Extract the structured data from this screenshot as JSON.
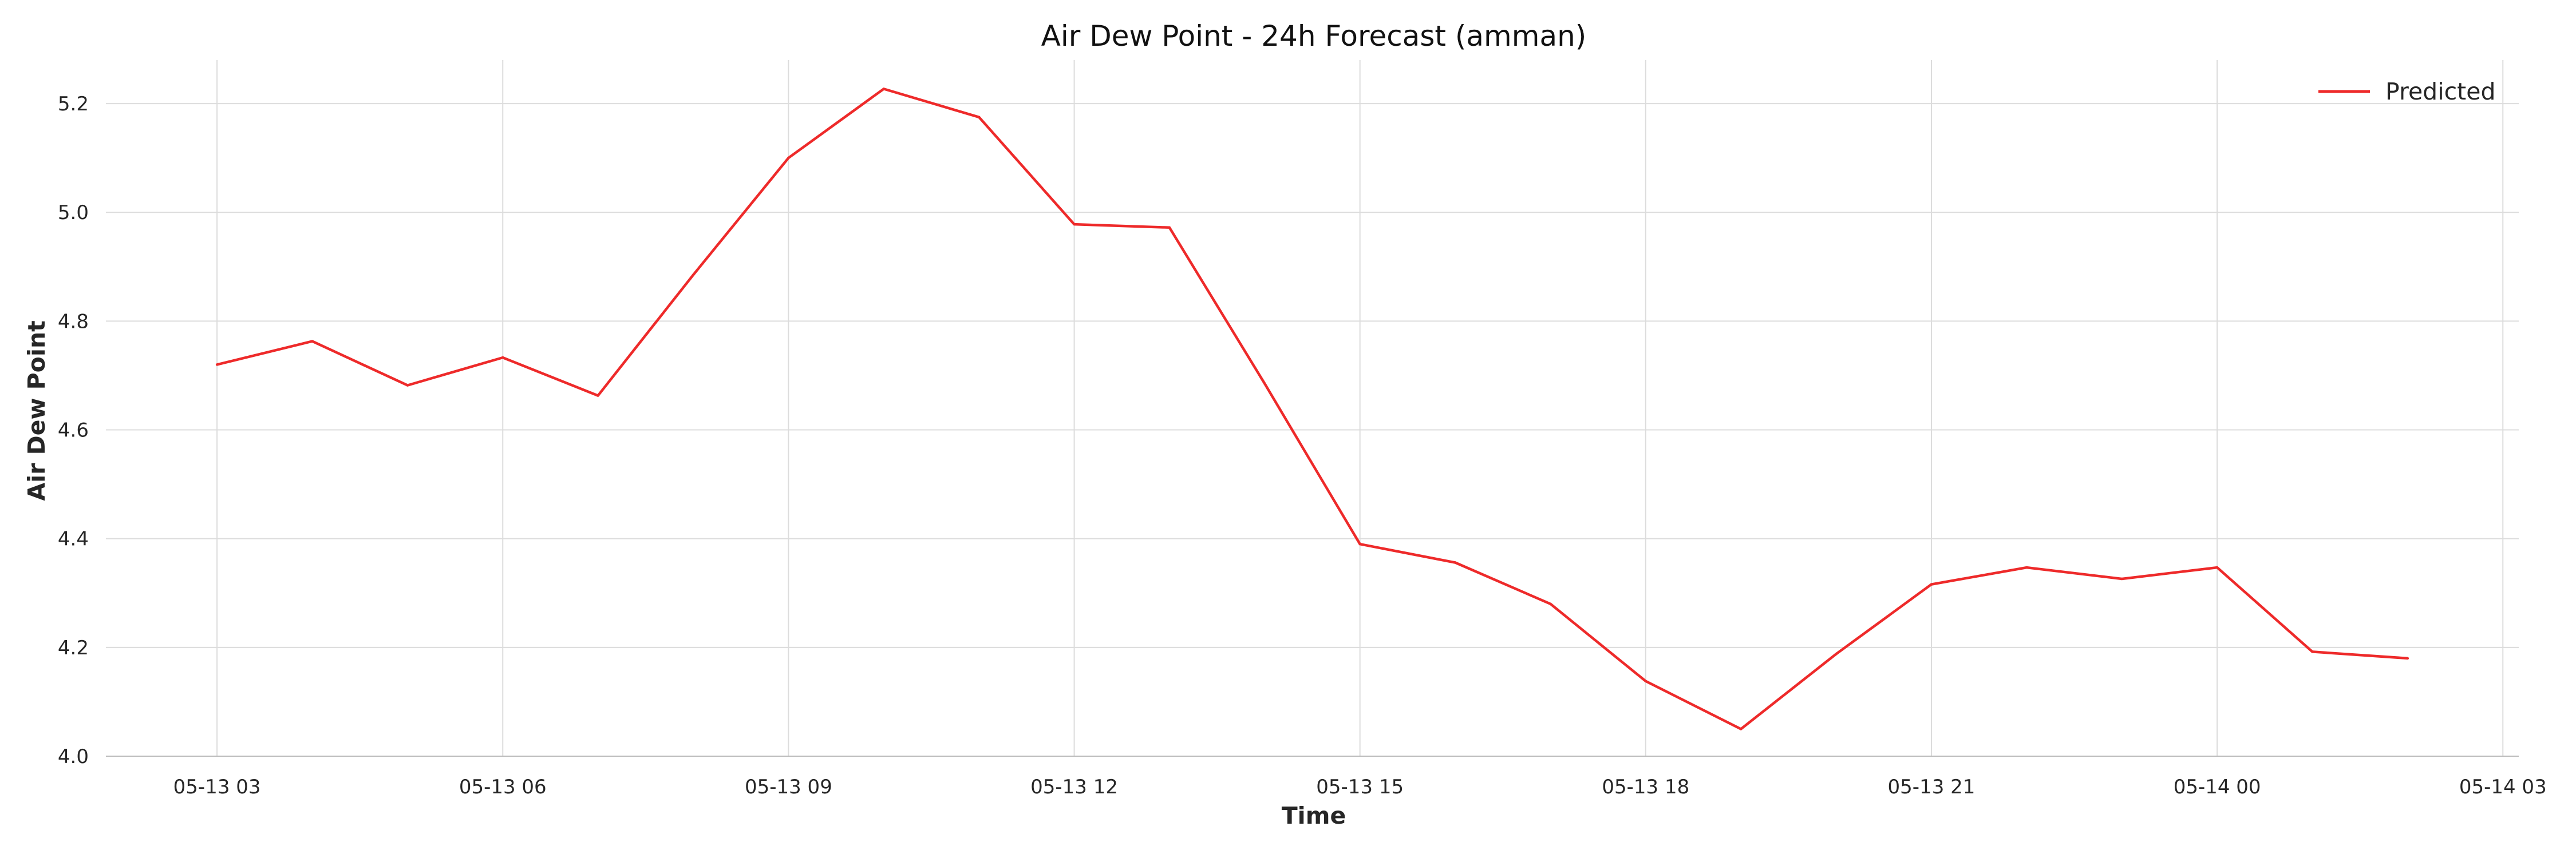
{
  "chart_data": {
    "type": "line",
    "title": "Air Dew Point - 24h Forecast (amman)",
    "xlabel": "Time",
    "ylabel": "Air Dew Point",
    "ylim": [
      4.0,
      5.28
    ],
    "xlim": [
      "2025-05-13 01:50",
      "2025-05-14 03:10"
    ],
    "yticks": [
      4.0,
      4.2,
      4.4,
      4.6,
      4.8,
      5.0,
      5.2
    ],
    "xticks": [
      {
        "t": "2025-05-13 03:00",
        "label": "05-13 03"
      },
      {
        "t": "2025-05-13 06:00",
        "label": "05-13 06"
      },
      {
        "t": "2025-05-13 09:00",
        "label": "05-13 09"
      },
      {
        "t": "2025-05-13 12:00",
        "label": "05-13 12"
      },
      {
        "t": "2025-05-13 15:00",
        "label": "05-13 15"
      },
      {
        "t": "2025-05-13 18:00",
        "label": "05-13 18"
      },
      {
        "t": "2025-05-13 21:00",
        "label": "05-13 21"
      },
      {
        "t": "2025-05-14 00:00",
        "label": "05-14 00"
      },
      {
        "t": "2025-05-14 03:00",
        "label": "05-14 03"
      }
    ],
    "grid": true,
    "legend_position": "top-right",
    "series": [
      {
        "name": "Predicted",
        "color": "#ee2a2a",
        "x": [
          "2025-05-13 03:00",
          "2025-05-13 04:00",
          "2025-05-13 05:00",
          "2025-05-13 06:00",
          "2025-05-13 07:00",
          "2025-05-13 08:00",
          "2025-05-13 09:00",
          "2025-05-13 10:00",
          "2025-05-13 11:00",
          "2025-05-13 12:00",
          "2025-05-13 13:00",
          "2025-05-13 14:00",
          "2025-05-13 15:00",
          "2025-05-13 16:00",
          "2025-05-13 17:00",
          "2025-05-13 18:00",
          "2025-05-13 19:00",
          "2025-05-13 20:00",
          "2025-05-13 21:00",
          "2025-05-13 22:00",
          "2025-05-13 23:00",
          "2025-05-14 00:00",
          "2025-05-14 01:00",
          "2025-05-14 02:00"
        ],
        "values": [
          4.72,
          4.763,
          4.682,
          4.733,
          4.663,
          4.885,
          5.1,
          5.227,
          5.175,
          4.978,
          4.972,
          4.685,
          4.39,
          4.356,
          4.28,
          4.138,
          4.05,
          4.188,
          4.316,
          4.347,
          4.326,
          4.347,
          4.192,
          4.18
        ]
      }
    ]
  }
}
